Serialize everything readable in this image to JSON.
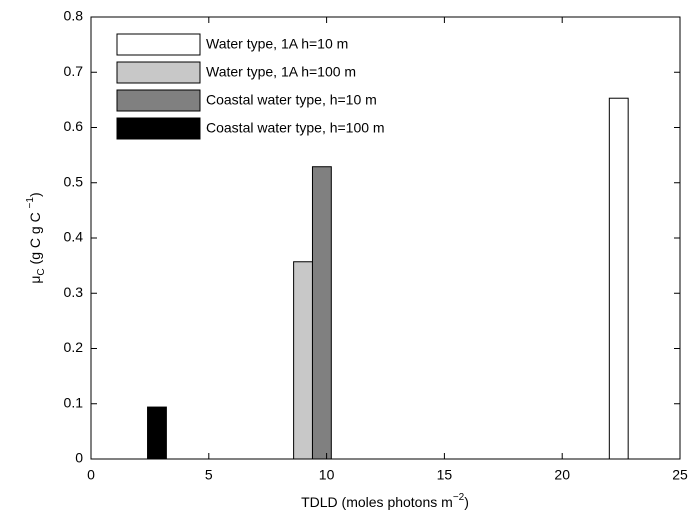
{
  "chart_data": {
    "type": "bar",
    "xlabel": [
      "TDLD (moles photons m",
      "−2",
      ")"
    ],
    "ylabel": [
      "μ",
      "C",
      " (g C g C ",
      "−1",
      ")"
    ],
    "xlim": [
      0,
      25
    ],
    "xticks": [
      0,
      5,
      10,
      15,
      20,
      25
    ],
    "ylim": [
      0,
      0.8
    ],
    "yticks": [
      0,
      0.1,
      0.2,
      0.3,
      0.4,
      0.5,
      0.6,
      0.7,
      0.8
    ],
    "legend": "upper left",
    "series": [
      {
        "name": "Water type, 1A h=10 m",
        "color": "#ffffff",
        "bins": [
          22.0,
          22.8
        ],
        "values": [
          0.653
        ]
      },
      {
        "name": "Water type, 1A h=100 m",
        "color": "#c8c8c8",
        "bins": [
          8.6,
          9.4
        ],
        "values": [
          0.357
        ]
      },
      {
        "name": "Coastal water type, h=10 m",
        "color": "#808080",
        "bins": [
          9.4,
          10.2
        ],
        "values": [
          0.529
        ]
      },
      {
        "name": "Coastal water type, h=100 m",
        "color": "#000000",
        "bins": [
          2.4,
          3.2
        ],
        "values": [
          0.094
        ]
      }
    ]
  }
}
